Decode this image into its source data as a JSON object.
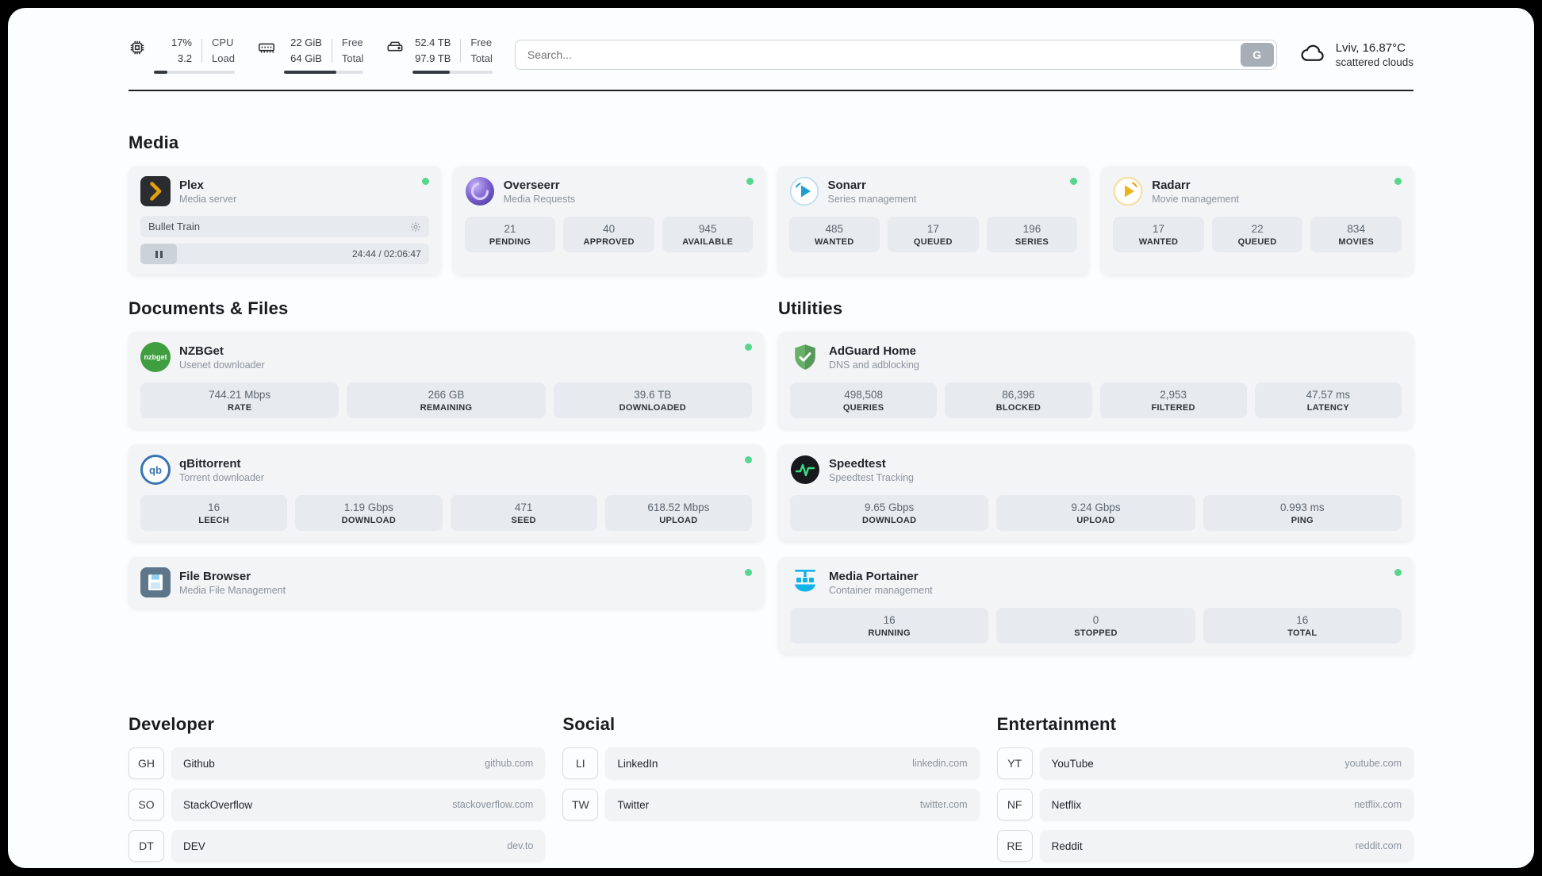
{
  "colors": {
    "status_online": "#57d78c",
    "accent_dark": "#212529",
    "plex_yellow": "#e5a00d",
    "portainer_blue": "#12b3e8",
    "adguard_green": "#68b06a",
    "speedtest_green": "#3ddc84"
  },
  "topbar": {
    "cpu": {
      "value_top": "17%",
      "value_bottom": "3.2",
      "label_top": "CPU",
      "label_bottom": "Load",
      "progress": 17
    },
    "ram": {
      "value_top": "22 GiB",
      "value_bottom": "64 GiB",
      "label_top": "Free",
      "label_bottom": "Total",
      "progress": 66
    },
    "disk": {
      "value_top": "52.4 TB",
      "value_bottom": "97.9 TB",
      "label_top": "Free",
      "label_bottom": "Total",
      "progress": 46
    },
    "search": {
      "placeholder": "Search...",
      "button_label": "G"
    },
    "weather": {
      "location": "Lviv, 16.87°C",
      "condition": "scattered clouds"
    }
  },
  "sections": {
    "media": {
      "title": "Media",
      "apps": [
        {
          "name": "Plex",
          "subtitle": "Media server",
          "player": {
            "title": "Bullet Train",
            "time": "24:44 / 02:06:47"
          }
        },
        {
          "name": "Overseerr",
          "subtitle": "Media Requests",
          "stats": [
            {
              "value": "21",
              "label": "PENDING"
            },
            {
              "value": "40",
              "label": "APPROVED"
            },
            {
              "value": "945",
              "label": "AVAILABLE"
            }
          ]
        },
        {
          "name": "Sonarr",
          "subtitle": "Series management",
          "stats": [
            {
              "value": "485",
              "label": "WANTED"
            },
            {
              "value": "17",
              "label": "QUEUED"
            },
            {
              "value": "196",
              "label": "SERIES"
            }
          ]
        },
        {
          "name": "Radarr",
          "subtitle": "Movie management",
          "stats": [
            {
              "value": "17",
              "label": "WANTED"
            },
            {
              "value": "22",
              "label": "QUEUED"
            },
            {
              "value": "834",
              "label": "MOVIES"
            }
          ]
        }
      ]
    },
    "documents": {
      "title": "Documents & Files",
      "apps": [
        {
          "name": "NZBGet",
          "subtitle": "Usenet downloader",
          "stats": [
            {
              "value": "744.21 Mbps",
              "label": "RATE"
            },
            {
              "value": "266 GB",
              "label": "REMAINING"
            },
            {
              "value": "39.6 TB",
              "label": "DOWNLOADED"
            }
          ]
        },
        {
          "name": "qBittorrent",
          "subtitle": "Torrent downloader",
          "stats": [
            {
              "value": "16",
              "label": "LEECH"
            },
            {
              "value": "1.19 Gbps",
              "label": "DOWNLOAD"
            },
            {
              "value": "471",
              "label": "SEED"
            },
            {
              "value": "618.52 Mbps",
              "label": "UPLOAD"
            }
          ]
        },
        {
          "name": "File Browser",
          "subtitle": "Media File Management"
        }
      ]
    },
    "utilities": {
      "title": "Utilities",
      "apps": [
        {
          "name": "AdGuard Home",
          "subtitle": "DNS and adblocking",
          "stats": [
            {
              "value": "498,508",
              "label": "QUERIES"
            },
            {
              "value": "86,396",
              "label": "BLOCKED"
            },
            {
              "value": "2,953",
              "label": "FILTERED"
            },
            {
              "value": "47.57 ms",
              "label": "LATENCY"
            }
          ]
        },
        {
          "name": "Speedtest",
          "subtitle": "Speedtest Tracking",
          "stats": [
            {
              "value": "9.65 Gbps",
              "label": "DOWNLOAD"
            },
            {
              "value": "9.24 Gbps",
              "label": "UPLOAD"
            },
            {
              "value": "0.993 ms",
              "label": "PING"
            }
          ]
        },
        {
          "name": "Media Portainer",
          "subtitle": "Container management",
          "stats": [
            {
              "value": "16",
              "label": "RUNNING"
            },
            {
              "value": "0",
              "label": "STOPPED"
            },
            {
              "value": "16",
              "label": "TOTAL"
            }
          ]
        }
      ]
    }
  },
  "link_groups": [
    {
      "title": "Developer",
      "links": [
        {
          "abbr": "GH",
          "name": "Github",
          "domain": "github.com"
        },
        {
          "abbr": "SO",
          "name": "StackOverflow",
          "domain": "stackoverflow.com"
        },
        {
          "abbr": "DT",
          "name": "DEV",
          "domain": "dev.to"
        }
      ]
    },
    {
      "title": "Social",
      "links": [
        {
          "abbr": "LI",
          "name": "LinkedIn",
          "domain": "linkedin.com"
        },
        {
          "abbr": "TW",
          "name": "Twitter",
          "domain": "twitter.com"
        }
      ]
    },
    {
      "title": "Entertainment",
      "links": [
        {
          "abbr": "YT",
          "name": "YouTube",
          "domain": "youtube.com"
        },
        {
          "abbr": "NF",
          "name": "Netflix",
          "domain": "netflix.com"
        },
        {
          "abbr": "RE",
          "name": "Reddit",
          "domain": "reddit.com"
        }
      ]
    }
  ],
  "icons": {
    "nzbget_text": "nzbget",
    "qbittorrent_text": "qb"
  }
}
